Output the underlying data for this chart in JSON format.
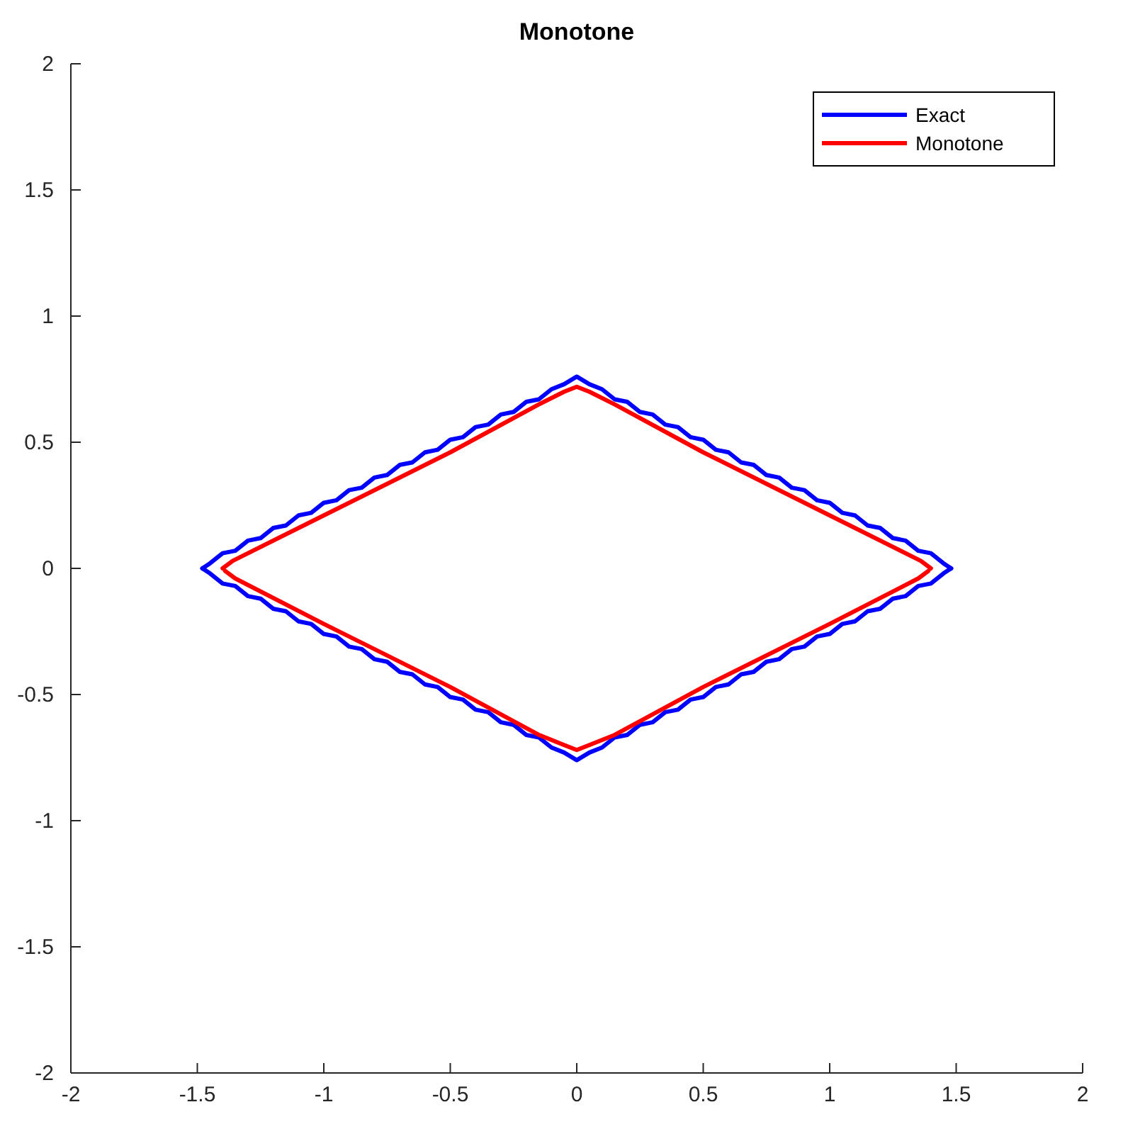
{
  "chart_data": {
    "type": "line",
    "title": "Monotone",
    "xlim": [
      -2,
      2
    ],
    "ylim": [
      -2,
      2
    ],
    "xticks": [
      -2,
      -1.5,
      -1,
      -0.5,
      0,
      0.5,
      1,
      1.5,
      2
    ],
    "yticks": [
      -2,
      -1.5,
      -1,
      -0.5,
      0,
      0.5,
      1,
      1.5,
      2
    ],
    "legend": "top right",
    "grid": false,
    "marker": "none",
    "line_style": "solid",
    "series": [
      {
        "name": "Exact",
        "color": "#0000ff",
        "x": [
          -1.48,
          -1.45,
          -1.4,
          -1.35,
          -1.3,
          -1.25,
          -1.2,
          -1.15,
          -1.1,
          -1.05,
          -1,
          -0.95,
          -0.9,
          -0.85,
          -0.8,
          -0.75,
          -0.7,
          -0.65,
          -0.6,
          -0.55,
          -0.5,
          -0.45,
          -0.4,
          -0.35,
          -0.3,
          -0.25,
          -0.2,
          -0.15,
          -0.1,
          -0.05,
          0,
          0.05,
          0.1,
          0.15,
          0.2,
          0.25,
          0.3,
          0.35,
          0.4,
          0.45,
          0.5,
          0.55,
          0.6,
          0.65,
          0.7,
          0.75,
          0.8,
          0.85,
          0.9,
          0.95,
          1,
          1.05,
          1.1,
          1.15,
          1.2,
          1.25,
          1.3,
          1.35,
          1.4,
          1.45,
          1.48
        ],
        "values": [
          0,
          0.02,
          0.06,
          0.07,
          0.11,
          0.12,
          0.16,
          0.17,
          0.21,
          0.22,
          0.26,
          0.27,
          0.31,
          0.32,
          0.36,
          0.37,
          0.41,
          0.42,
          0.46,
          0.47,
          0.51,
          0.52,
          0.56,
          0.57,
          0.61,
          0.62,
          0.66,
          0.67,
          0.71,
          0.73,
          0.76,
          0.73,
          0.71,
          0.67,
          0.66,
          0.62,
          0.61,
          0.57,
          0.56,
          0.52,
          0.51,
          0.47,
          0.46,
          0.42,
          0.41,
          0.37,
          0.36,
          0.32,
          0.31,
          0.27,
          0.26,
          0.22,
          0.21,
          0.17,
          0.16,
          0.12,
          0.11,
          0.07,
          0.06,
          0.02,
          0
        ]
      },
      {
        "color": "#0000ff",
        "x": [
          -1.48,
          -1.45,
          -1.4,
          -1.35,
          -1.3,
          -1.25,
          -1.2,
          -1.15,
          -1.1,
          -1.05,
          -1,
          -0.95,
          -0.9,
          -0.85,
          -0.8,
          -0.75,
          -0.7,
          -0.65,
          -0.6,
          -0.55,
          -0.5,
          -0.45,
          -0.4,
          -0.35,
          -0.3,
          -0.25,
          -0.2,
          -0.15,
          -0.1,
          -0.05,
          0,
          0.05,
          0.1,
          0.15,
          0.2,
          0.25,
          0.3,
          0.35,
          0.4,
          0.45,
          0.5,
          0.55,
          0.6,
          0.65,
          0.7,
          0.75,
          0.8,
          0.85,
          0.9,
          0.95,
          1,
          1.05,
          1.1,
          1.15,
          1.2,
          1.25,
          1.3,
          1.35,
          1.4,
          1.45,
          1.48
        ],
        "values": [
          0,
          -0.02,
          -0.06,
          -0.07,
          -0.11,
          -0.12,
          -0.16,
          -0.17,
          -0.21,
          -0.22,
          -0.26,
          -0.27,
          -0.31,
          -0.32,
          -0.36,
          -0.37,
          -0.41,
          -0.42,
          -0.46,
          -0.47,
          -0.51,
          -0.52,
          -0.56,
          -0.57,
          -0.61,
          -0.62,
          -0.66,
          -0.67,
          -0.71,
          -0.73,
          -0.76,
          -0.73,
          -0.71,
          -0.67,
          -0.66,
          -0.62,
          -0.61,
          -0.57,
          -0.56,
          -0.52,
          -0.51,
          -0.47,
          -0.46,
          -0.42,
          -0.41,
          -0.37,
          -0.36,
          -0.32,
          -0.31,
          -0.27,
          -0.26,
          -0.22,
          -0.21,
          -0.17,
          -0.16,
          -0.12,
          -0.11,
          -0.07,
          -0.06,
          -0.02,
          0
        ]
      },
      {
        "name": "Monotone",
        "color": "#ff0000",
        "x": [
          -1.4,
          -1.36,
          -1,
          -0.5,
          -0.15,
          -0.05,
          0,
          0.05,
          0.15,
          0.5,
          1,
          1.36,
          1.4
        ],
        "values": [
          0,
          0.03,
          0.21,
          0.46,
          0.65,
          0.7,
          0.72,
          0.7,
          0.65,
          0.46,
          0.21,
          0.03,
          0
        ]
      },
      {
        "color": "#ff0000",
        "x": [
          -1.39,
          -1.35,
          -1,
          -0.5,
          -0.15,
          -0.05,
          0,
          0.05,
          0.15,
          0.5,
          1,
          1.35,
          1.39
        ],
        "values": [
          -0.01,
          -0.04,
          -0.22,
          -0.47,
          -0.66,
          -0.7,
          -0.72,
          -0.7,
          -0.66,
          -0.47,
          -0.22,
          -0.04,
          -0.01
        ]
      }
    ]
  }
}
